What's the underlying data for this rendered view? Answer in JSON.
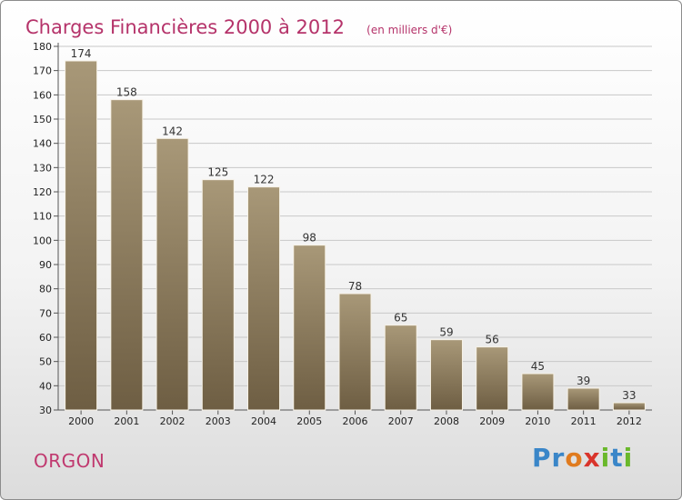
{
  "title": "Charges Financières 2000 à 2012",
  "subtitle": "(en milliers d'€)",
  "commune": "ORGON",
  "logo": {
    "text": "Proxiti",
    "letters": [
      {
        "ch": "P",
        "color": "#3a86c8"
      },
      {
        "ch": "r",
        "color": "#3a86c8"
      },
      {
        "ch": "o",
        "color": "#e07b1f"
      },
      {
        "ch": "x",
        "color": "#d9342b"
      },
      {
        "ch": "i",
        "color": "#6ab82b"
      },
      {
        "ch": "t",
        "color": "#3a86c8"
      },
      {
        "ch": "i",
        "color": "#6ab82b"
      }
    ]
  },
  "colors": {
    "bar_top": "#a89878",
    "bar_bottom": "#6e5e43",
    "bar_edge": "#f6f1e6",
    "grid": "#c8c8c8",
    "axis": "#555555",
    "title": "#b5336a"
  },
  "chart_data": {
    "type": "bar",
    "categories": [
      "2000",
      "2001",
      "2002",
      "2003",
      "2004",
      "2005",
      "2006",
      "2007",
      "2008",
      "2009",
      "2010",
      "2011",
      "2012"
    ],
    "values": [
      174,
      158,
      142,
      125,
      122,
      98,
      78,
      65,
      59,
      56,
      45,
      39,
      33
    ],
    "ylim": [
      30,
      180
    ],
    "yticks": [
      30,
      40,
      50,
      60,
      70,
      80,
      90,
      100,
      110,
      120,
      130,
      140,
      150,
      160,
      170,
      180
    ],
    "grid": true,
    "legend": "none"
  }
}
